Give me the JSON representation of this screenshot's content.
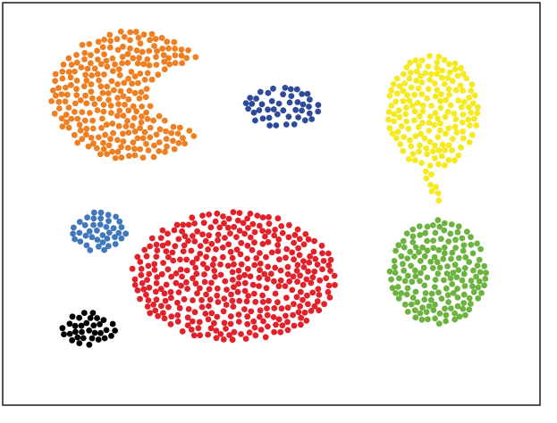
{
  "chart_data": {
    "type": "scatter",
    "title": "",
    "xlabel": "",
    "ylabel": "",
    "xlim": [
      0,
      100
    ],
    "ylim": [
      0,
      100
    ],
    "grid": false,
    "legend": "none",
    "axes_visible": false,
    "series": [
      {
        "color": "#ee7f22",
        "shape": "crescent",
        "cx": 24,
        "cy": 77,
        "rx": 15,
        "ry": 16,
        "count": 260
      },
      {
        "color": "#2e4a9a",
        "shape": "ellipse",
        "cx": 52,
        "cy": 74,
        "rx": 7,
        "ry": 5,
        "count": 45
      },
      {
        "color": "#f5ea1f",
        "shape": "ellipse",
        "cx": 80,
        "cy": 73,
        "rx": 8.5,
        "ry": 14,
        "count": 170
      },
      {
        "color": "#f5ea1f",
        "shape": "bridge",
        "x0": 79,
        "y0": 58,
        "x1": 81,
        "y1": 51,
        "count": 12
      },
      {
        "color": "#3f78bc",
        "shape": "ellipse",
        "cx": 18,
        "cy": 43,
        "rx": 5,
        "ry": 5,
        "count": 40
      },
      {
        "color": "#e3212a",
        "shape": "ellipse",
        "cx": 43,
        "cy": 32,
        "rx": 19,
        "ry": 16,
        "count": 420
      },
      {
        "color": "#6cb33f",
        "shape": "ellipse",
        "cx": 81,
        "cy": 33,
        "rx": 9,
        "ry": 13,
        "count": 170
      },
      {
        "color": "#000000",
        "shape": "ellipse",
        "cx": 16,
        "cy": 19,
        "rx": 5,
        "ry": 4,
        "count": 55
      }
    ]
  }
}
